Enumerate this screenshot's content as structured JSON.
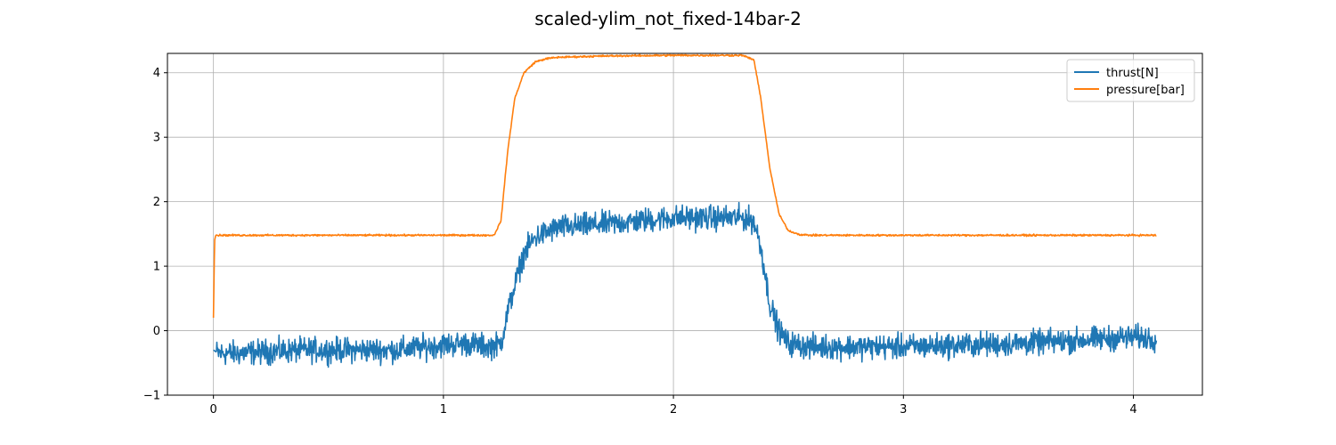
{
  "chart_data": {
    "type": "line",
    "title": "scaled-ylim_not_fixed-14bar-2",
    "xlabel": "",
    "ylabel": "",
    "xlim": [
      -0.2,
      4.3
    ],
    "ylim": [
      -1.0,
      4.3
    ],
    "xticks": [
      0,
      1,
      2,
      3,
      4
    ],
    "yticks": [
      -1,
      0,
      1,
      2,
      3,
      4
    ],
    "grid": true,
    "legend_position": "top-right",
    "series": [
      {
        "name": "thrust[N]",
        "color": "#1f77b4",
        "noise_band": 0.28,
        "x": [
          0.0,
          0.02,
          0.1,
          0.2,
          0.4,
          0.6,
          0.8,
          1.0,
          1.1,
          1.2,
          1.25,
          1.28,
          1.31,
          1.35,
          1.4,
          1.5,
          1.7,
          1.9,
          2.0,
          2.2,
          2.3,
          2.35,
          2.38,
          2.42,
          2.46,
          2.5,
          2.6,
          3.0,
          3.5,
          4.0,
          4.1
        ],
        "y": [
          -0.3,
          -0.35,
          -0.35,
          -0.33,
          -0.3,
          -0.3,
          -0.3,
          -0.22,
          -0.2,
          -0.25,
          -0.2,
          0.3,
          0.7,
          1.2,
          1.45,
          1.6,
          1.65,
          1.72,
          1.75,
          1.75,
          1.75,
          1.7,
          1.3,
          0.4,
          0.0,
          -0.2,
          -0.25,
          -0.25,
          -0.2,
          -0.1,
          -0.12
        ]
      },
      {
        "name": "pressure[bar]",
        "color": "#ff7f0e",
        "noise_band": 0.02,
        "x": [
          0.0,
          0.005,
          0.01,
          0.05,
          0.5,
          1.0,
          1.22,
          1.25,
          1.28,
          1.31,
          1.35,
          1.4,
          1.45,
          1.5,
          1.7,
          2.0,
          2.3,
          2.35,
          2.38,
          2.42,
          2.46,
          2.5,
          2.55,
          2.6,
          3.0,
          3.5,
          4.1
        ],
        "y": [
          0.2,
          1.4,
          1.48,
          1.48,
          1.48,
          1.48,
          1.48,
          1.7,
          2.8,
          3.6,
          4.0,
          4.17,
          4.22,
          4.24,
          4.26,
          4.27,
          4.27,
          4.2,
          3.6,
          2.5,
          1.8,
          1.55,
          1.49,
          1.48,
          1.48,
          1.48,
          1.48
        ]
      }
    ]
  }
}
